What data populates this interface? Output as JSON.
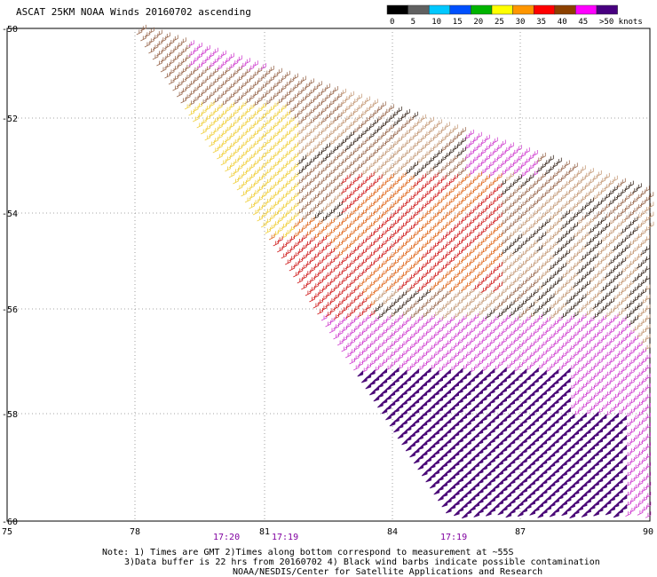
{
  "title": "ASCAT 25KM NOAA Winds 20160702 ascending",
  "legend": {
    "labels": [
      "0",
      "5",
      "10",
      "15",
      "20",
      "25",
      "30",
      "35",
      "40",
      "45",
      ">50 knots"
    ],
    "colors": [
      "#000000",
      "#606060",
      "#00c8ff",
      "#0050ff",
      "#00b400",
      "#ffff00",
      "#ff9600",
      "#ff0000",
      "#8c4000",
      "#ff00ff",
      "#480080"
    ]
  },
  "y_axis": {
    "ticks": [
      "-50",
      "-52",
      "-54",
      "-56",
      "-58",
      "-60"
    ]
  },
  "x_axis": {
    "ticks": [
      "75",
      "78",
      "81",
      "84",
      "87",
      "90"
    ]
  },
  "times": [
    "17:20",
    "17:19",
    "17:19"
  ],
  "notes": {
    "line1": "Note: 1) Times are GMT 2)Times along bottom correspond to measurement at ~55S",
    "line2": "3)Data buffer is 22 hrs from 20160702 4) Black wind barbs indicate possible contamination",
    "line3": "NOAA/NESDIS/Center for Satellite Applications and Research"
  },
  "wind_field": {
    "region_colors": {
      "south": "#4b0a78",
      "magenta": "#d040d0",
      "yellow": "#f0d040",
      "brown": "#9a6a50",
      "tan": "#c49a78",
      "red": "#d02020",
      "orange": "#e06a20",
      "dark": "#3a2a20"
    }
  }
}
